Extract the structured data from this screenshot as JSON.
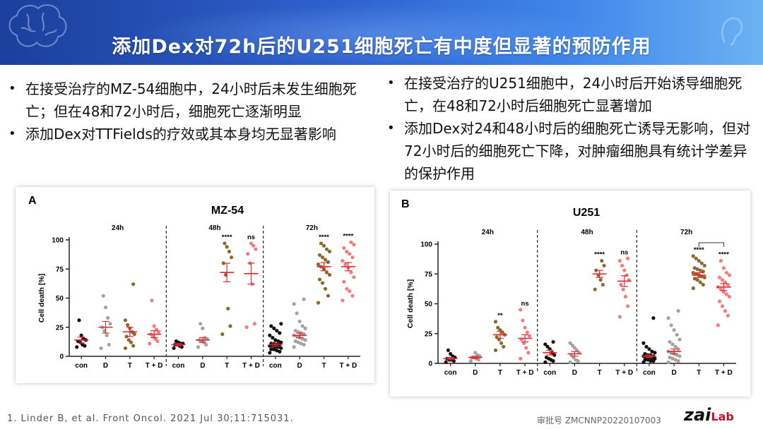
{
  "header": {
    "title": "添加Dex对72h后的U251细胞死亡有中度但显著的预防作用"
  },
  "left_bullets": [
    "在接受治疗的MZ-54细胞中，24小时后未发生细胞死亡；但在48和72小时后，细胞死亡逐渐明显",
    "添加Dex对TTFields的疗效或其本身均无显著影响"
  ],
  "right_bullets": [
    "在接受治疗的U251细胞中，24小时后开始诱导细胞死亡，在48和72小时后细胞死亡显著增加",
    "添加Dex对24和48小时后的细胞死亡诱导无影响，但对72小时后的细胞死亡下降，对肿瘤细胞具有统计学差异的保护作用"
  ],
  "footer": {
    "reference": "1. Linder B, et al. Front Oncol. 2021 Jul 30;11:715031.",
    "approval": "审批号 ZMCNNP20220107003",
    "logo": "zai",
    "logo_lab": "Lab"
  },
  "colors": {
    "con": "#111111",
    "D": "#a3a3a3",
    "T": "#8a6a2e",
    "T+D": "#f47c7c",
    "mean": "#e8262b",
    "header": "#2f62cf"
  },
  "chart_data": [
    {
      "type": "scatter",
      "panel": "A",
      "title": "MZ-54",
      "ylabel": "Cell death [%]",
      "ylim": [
        0,
        100
      ],
      "yticks": [
        0,
        25,
        50,
        75,
        100
      ],
      "timepoints": [
        "24h",
        "48h",
        "72h"
      ],
      "categories": [
        "con",
        "D",
        "T",
        "T + D"
      ],
      "groups": [
        {
          "time": "24h",
          "cond": "con",
          "mean": 14,
          "sem": 2.5,
          "sig": "",
          "points": [
            8,
            9,
            10,
            12,
            13,
            14,
            15,
            18,
            31
          ]
        },
        {
          "time": "24h",
          "cond": "D",
          "mean": 25,
          "sem": 5,
          "sig": "",
          "points": [
            7,
            10,
            18,
            22,
            25,
            28,
            33,
            42,
            52
          ]
        },
        {
          "time": "24h",
          "cond": "T",
          "mean": 21,
          "sem": 4,
          "sig": "",
          "points": [
            7,
            9,
            12,
            14,
            17,
            19,
            21,
            24,
            27,
            31,
            62
          ]
        },
        {
          "time": "24h",
          "cond": "T + D",
          "mean": 19,
          "sem": 3,
          "sig": "",
          "points": [
            11,
            13,
            15,
            17,
            19,
            21,
            23,
            26,
            48
          ]
        },
        {
          "time": "48h",
          "cond": "con",
          "mean": 10,
          "sem": 1,
          "sig": "",
          "points": [
            7,
            8,
            9,
            10,
            10,
            11,
            11,
            12,
            13
          ]
        },
        {
          "time": "48h",
          "cond": "D",
          "mean": 14,
          "sem": 2,
          "sig": "",
          "points": [
            8,
            10,
            12,
            13,
            14,
            15,
            16,
            24,
            28
          ]
        },
        {
          "time": "48h",
          "cond": "T",
          "mean": 72,
          "sem": 8,
          "sig": "****",
          "points": [
            19,
            26,
            41,
            70,
            80,
            85,
            90,
            94,
            97
          ]
        },
        {
          "time": "48h",
          "cond": "T + D",
          "mean": 71,
          "sem": 9,
          "sig": "ns",
          "points": [
            25,
            28,
            62,
            80,
            88,
            92,
            95,
            97
          ]
        },
        {
          "time": "72h",
          "cond": "con",
          "mean": 10,
          "sem": 1.5,
          "sig": "",
          "points": [
            3,
            4,
            5,
            6,
            6,
            7,
            8,
            8,
            9,
            9,
            10,
            10,
            11,
            11,
            12,
            13,
            14,
            16,
            18,
            20,
            22,
            24,
            26,
            28
          ]
        },
        {
          "time": "72h",
          "cond": "D",
          "mean": 18,
          "sem": 2,
          "sig": "",
          "points": [
            8,
            10,
            11,
            12,
            13,
            14,
            15,
            16,
            17,
            18,
            19,
            20,
            21,
            22,
            24,
            26,
            30,
            37,
            45,
            49
          ]
        },
        {
          "time": "72h",
          "cond": "T",
          "mean": 77,
          "sem": 3.5,
          "sig": "****",
          "points": [
            46,
            52,
            58,
            63,
            66,
            70,
            72,
            75,
            77,
            79,
            81,
            83,
            85,
            87,
            90,
            92,
            95,
            97
          ]
        },
        {
          "time": "72h",
          "cond": "T + D",
          "mean": 77,
          "sem": 3.5,
          "sig": "****",
          "points": [
            48,
            52,
            56,
            58,
            64,
            68,
            72,
            76,
            79,
            82,
            85,
            88,
            90,
            93,
            96,
            98
          ]
        }
      ]
    },
    {
      "type": "scatter",
      "panel": "B",
      "title": "U251",
      "ylabel": "Cell death [%]",
      "ylim": [
        0,
        100
      ],
      "yticks": [
        0,
        25,
        50,
        75,
        100
      ],
      "timepoints": [
        "24h",
        "48h",
        "72h"
      ],
      "categories": [
        "con",
        "D",
        "T",
        "T + D"
      ],
      "groups": [
        {
          "time": "24h",
          "cond": "con",
          "mean": 4,
          "sem": 1,
          "sig": "",
          "points": [
            1,
            2,
            3,
            3,
            4,
            5,
            6,
            8,
            11
          ]
        },
        {
          "time": "24h",
          "cond": "D",
          "mean": 5,
          "sem": 1,
          "sig": "",
          "points": [
            2,
            3,
            4,
            5,
            5,
            6,
            7,
            9
          ]
        },
        {
          "time": "24h",
          "cond": "T",
          "mean": 24,
          "sem": 3,
          "sig": "**",
          "points": [
            11,
            14,
            17,
            20,
            22,
            24,
            26,
            28,
            30,
            35
          ]
        },
        {
          "time": "24h",
          "cond": "T + D",
          "mean": 21,
          "sem": 3,
          "sig": "ns",
          "points": [
            4,
            9,
            13,
            17,
            20,
            23,
            26,
            30,
            36,
            45
          ]
        },
        {
          "time": "48h",
          "cond": "con",
          "mean": 9,
          "sem": 2,
          "sig": "",
          "points": [
            1,
            2,
            3,
            4,
            5,
            7,
            9,
            12,
            14,
            16,
            18
          ]
        },
        {
          "time": "48h",
          "cond": "D",
          "mean": 8,
          "sem": 2,
          "sig": "",
          "points": [
            1,
            2,
            3,
            5,
            7,
            9,
            11,
            13,
            15,
            17
          ]
        },
        {
          "time": "48h",
          "cond": "T",
          "mean": 75,
          "sem": 3,
          "sig": "****",
          "points": [
            62,
            66,
            70,
            74,
            78,
            82,
            86
          ]
        },
        {
          "time": "48h",
          "cond": "T + D",
          "mean": 69,
          "sem": 4.5,
          "sig": "ns",
          "points": [
            39,
            48,
            56,
            62,
            66,
            70,
            74,
            78,
            82,
            86,
            88
          ]
        },
        {
          "time": "72h",
          "cond": "con",
          "mean": 6,
          "sem": 1,
          "sig": "",
          "points": [
            1,
            2,
            2,
            3,
            3,
            4,
            4,
            5,
            5,
            6,
            6,
            7,
            7,
            8,
            9,
            10,
            12,
            14,
            17,
            38
          ]
        },
        {
          "time": "72h",
          "cond": "D",
          "mean": 10,
          "sem": 2,
          "sig": "",
          "points": [
            1,
            2,
            3,
            4,
            5,
            6,
            7,
            8,
            9,
            10,
            12,
            14,
            16,
            18,
            20,
            24,
            28,
            32,
            38,
            44
          ]
        },
        {
          "time": "72h",
          "cond": "T",
          "mean": 74,
          "sem": 2,
          "sig": "****",
          "points": [
            63,
            66,
            68,
            70,
            71,
            72,
            73,
            74,
            75,
            76,
            77,
            78,
            79,
            80,
            82,
            84,
            86,
            88,
            90
          ]
        },
        {
          "time": "72h",
          "cond": "T + D",
          "mean": 64,
          "sem": 3,
          "sig": "****",
          "points": [
            32,
            40,
            44,
            48,
            52,
            56,
            58,
            60,
            62,
            64,
            66,
            68,
            70,
            72,
            74,
            76,
            80,
            86
          ]
        }
      ],
      "bracket": {
        "from": "T",
        "to": "T + D",
        "time": "72h"
      }
    }
  ]
}
